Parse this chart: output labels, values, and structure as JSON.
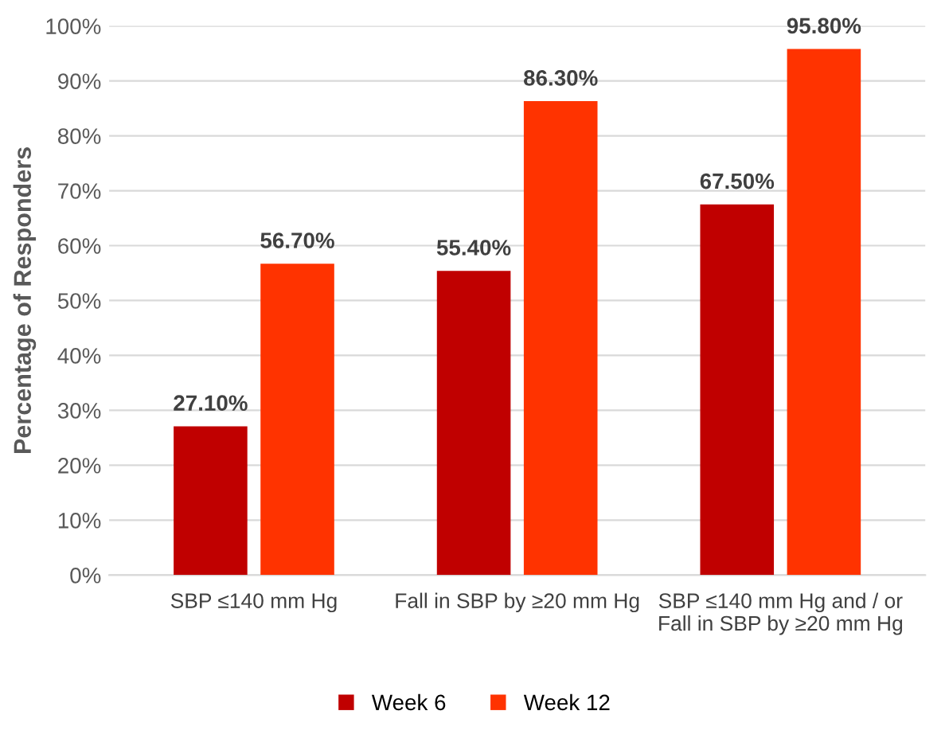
{
  "chart_data": {
    "type": "bar",
    "ylabel": "Percentage of Responders",
    "categories": [
      "SBP ≤140 mm Hg",
      "Fall in SBP by ≥20 mm Hg",
      "SBP ≤140 mm Hg and / or\nFall in SBP by ≥20 mm Hg"
    ],
    "series": [
      {
        "name": "Week 6",
        "color": "#c00000",
        "values": [
          27.1,
          55.4,
          67.5
        ],
        "value_labels": [
          "27.10%",
          "55.40%",
          "67.50%"
        ]
      },
      {
        "name": "Week 12",
        "color": "#ff3300",
        "values": [
          56.7,
          86.3,
          95.8
        ],
        "value_labels": [
          "56.70%",
          "86.30%",
          "95.80%"
        ]
      }
    ],
    "ylim": [
      0,
      100
    ],
    "yticks": [
      {
        "value": 0,
        "label": "0%"
      },
      {
        "value": 10,
        "label": "10%"
      },
      {
        "value": 20,
        "label": "20%"
      },
      {
        "value": 30,
        "label": "30%"
      },
      {
        "value": 40,
        "label": "40%"
      },
      {
        "value": 50,
        "label": "50%"
      },
      {
        "value": 60,
        "label": "60%"
      },
      {
        "value": 70,
        "label": "70%"
      },
      {
        "value": 80,
        "label": "80%"
      },
      {
        "value": 90,
        "label": "90%"
      },
      {
        "value": 100,
        "label": "100%"
      }
    ],
    "grid": "y",
    "legend": "bottom"
  }
}
